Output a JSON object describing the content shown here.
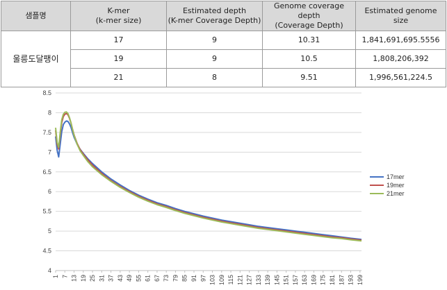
{
  "table": {
    "headers": [
      "샘플명",
      "K-mer\n(k-mer size)",
      "Estimated depth\n(K-mer Coverage Depth)",
      "Genome coverage depth\n(Coverage Depth)",
      "Estimated genome\nsize"
    ],
    "sample_name": "울릉도달팽이",
    "rows": [
      {
        "kmer": "17",
        "est_depth": "9",
        "cov_depth": "10.31",
        "genome_size": "1,841,691,695.5556"
      },
      {
        "kmer": "19",
        "est_depth": "9",
        "cov_depth": "10.5",
        "genome_size": "1,808,206,392"
      },
      {
        "kmer": "21",
        "est_depth": "8",
        "cov_depth": "9.51",
        "genome_size": "1,996,561,224.5"
      }
    ]
  },
  "chart_data": {
    "type": "line",
    "ylim": [
      4,
      8.5
    ],
    "yticks": [
      "4",
      "4.5",
      "5",
      "5.5",
      "6",
      "6.5",
      "7",
      "7.5",
      "8",
      "8.5"
    ],
    "xlim": [
      1,
      200
    ],
    "xticks": [
      "1",
      "7",
      "13",
      "19",
      "25",
      "31",
      "37",
      "43",
      "49",
      "55",
      "61",
      "67",
      "73",
      "79",
      "85",
      "91",
      "97",
      "103",
      "109",
      "115",
      "121",
      "127",
      "133",
      "139",
      "145",
      "151",
      "157",
      "163",
      "169",
      "175",
      "181",
      "187",
      "193",
      "199"
    ],
    "grid": true,
    "legend_position": "right",
    "series": [
      {
        "name": "17mer",
        "color": "#4472c4",
        "points": [
          [
            1,
            7.4
          ],
          [
            2,
            7.05
          ],
          [
            3,
            6.88
          ],
          [
            4,
            7.2
          ],
          [
            5,
            7.52
          ],
          [
            6,
            7.7
          ],
          [
            7,
            7.76
          ],
          [
            8,
            7.79
          ],
          [
            9,
            7.78
          ],
          [
            10,
            7.72
          ],
          [
            11,
            7.63
          ],
          [
            12,
            7.5
          ],
          [
            13,
            7.38
          ],
          [
            15,
            7.2
          ],
          [
            17,
            7.07
          ],
          [
            19,
            6.97
          ],
          [
            22,
            6.83
          ],
          [
            25,
            6.71
          ],
          [
            31,
            6.5
          ],
          [
            37,
            6.32
          ],
          [
            43,
            6.17
          ],
          [
            49,
            6.03
          ],
          [
            55,
            5.91
          ],
          [
            61,
            5.81
          ],
          [
            67,
            5.72
          ],
          [
            73,
            5.65
          ],
          [
            79,
            5.57
          ],
          [
            85,
            5.5
          ],
          [
            91,
            5.44
          ],
          [
            97,
            5.38
          ],
          [
            103,
            5.33
          ],
          [
            109,
            5.28
          ],
          [
            115,
            5.24
          ],
          [
            121,
            5.2
          ],
          [
            127,
            5.16
          ],
          [
            133,
            5.12
          ],
          [
            139,
            5.09
          ],
          [
            145,
            5.06
          ],
          [
            151,
            5.03
          ],
          [
            157,
            5
          ],
          [
            163,
            4.97
          ],
          [
            169,
            4.94
          ],
          [
            175,
            4.91
          ],
          [
            181,
            4.88
          ],
          [
            187,
            4.85
          ],
          [
            193,
            4.82
          ],
          [
            200,
            4.79
          ]
        ]
      },
      {
        "name": "19mer",
        "color": "#c0504d",
        "points": [
          [
            1,
            7.55
          ],
          [
            2,
            7.2
          ],
          [
            3,
            7.08
          ],
          [
            4,
            7.45
          ],
          [
            5,
            7.75
          ],
          [
            6,
            7.9
          ],
          [
            7,
            7.96
          ],
          [
            8,
            7.98
          ],
          [
            9,
            7.95
          ],
          [
            10,
            7.86
          ],
          [
            11,
            7.74
          ],
          [
            12,
            7.58
          ],
          [
            13,
            7.44
          ],
          [
            15,
            7.22
          ],
          [
            17,
            7.06
          ],
          [
            19,
            6.95
          ],
          [
            22,
            6.8
          ],
          [
            25,
            6.67
          ],
          [
            31,
            6.46
          ],
          [
            37,
            6.28
          ],
          [
            43,
            6.13
          ],
          [
            49,
            6
          ],
          [
            55,
            5.88
          ],
          [
            61,
            5.78
          ],
          [
            67,
            5.69
          ],
          [
            73,
            5.62
          ],
          [
            79,
            5.54
          ],
          [
            85,
            5.47
          ],
          [
            91,
            5.41
          ],
          [
            97,
            5.35
          ],
          [
            103,
            5.3
          ],
          [
            109,
            5.25
          ],
          [
            115,
            5.21
          ],
          [
            121,
            5.17
          ],
          [
            127,
            5.13
          ],
          [
            133,
            5.09
          ],
          [
            139,
            5.06
          ],
          [
            145,
            5.03
          ],
          [
            151,
            5
          ],
          [
            157,
            4.97
          ],
          [
            163,
            4.94
          ],
          [
            169,
            4.91
          ],
          [
            175,
            4.88
          ],
          [
            181,
            4.85
          ],
          [
            187,
            4.83
          ],
          [
            193,
            4.8
          ],
          [
            200,
            4.77
          ]
        ]
      },
      {
        "name": "21mer",
        "color": "#9bbb59",
        "points": [
          [
            1,
            7.62
          ],
          [
            2,
            7.25
          ],
          [
            3,
            7.12
          ],
          [
            4,
            7.5
          ],
          [
            5,
            7.82
          ],
          [
            6,
            7.96
          ],
          [
            7,
            8.01
          ],
          [
            8,
            8.02
          ],
          [
            9,
            7.98
          ],
          [
            10,
            7.88
          ],
          [
            11,
            7.74
          ],
          [
            12,
            7.58
          ],
          [
            13,
            7.43
          ],
          [
            15,
            7.2
          ],
          [
            17,
            7.03
          ],
          [
            19,
            6.92
          ],
          [
            22,
            6.76
          ],
          [
            25,
            6.63
          ],
          [
            31,
            6.43
          ],
          [
            37,
            6.26
          ],
          [
            43,
            6.11
          ],
          [
            49,
            5.98
          ],
          [
            55,
            5.86
          ],
          [
            61,
            5.76
          ],
          [
            67,
            5.67
          ],
          [
            73,
            5.6
          ],
          [
            79,
            5.52
          ],
          [
            85,
            5.45
          ],
          [
            91,
            5.39
          ],
          [
            97,
            5.33
          ],
          [
            103,
            5.28
          ],
          [
            109,
            5.23
          ],
          [
            115,
            5.19
          ],
          [
            121,
            5.15
          ],
          [
            127,
            5.11
          ],
          [
            133,
            5.07
          ],
          [
            139,
            5.04
          ],
          [
            145,
            5.01
          ],
          [
            151,
            4.98
          ],
          [
            157,
            4.95
          ],
          [
            163,
            4.92
          ],
          [
            169,
            4.89
          ],
          [
            175,
            4.86
          ],
          [
            181,
            4.83
          ],
          [
            187,
            4.81
          ],
          [
            193,
            4.78
          ],
          [
            200,
            4.75
          ]
        ]
      }
    ]
  }
}
